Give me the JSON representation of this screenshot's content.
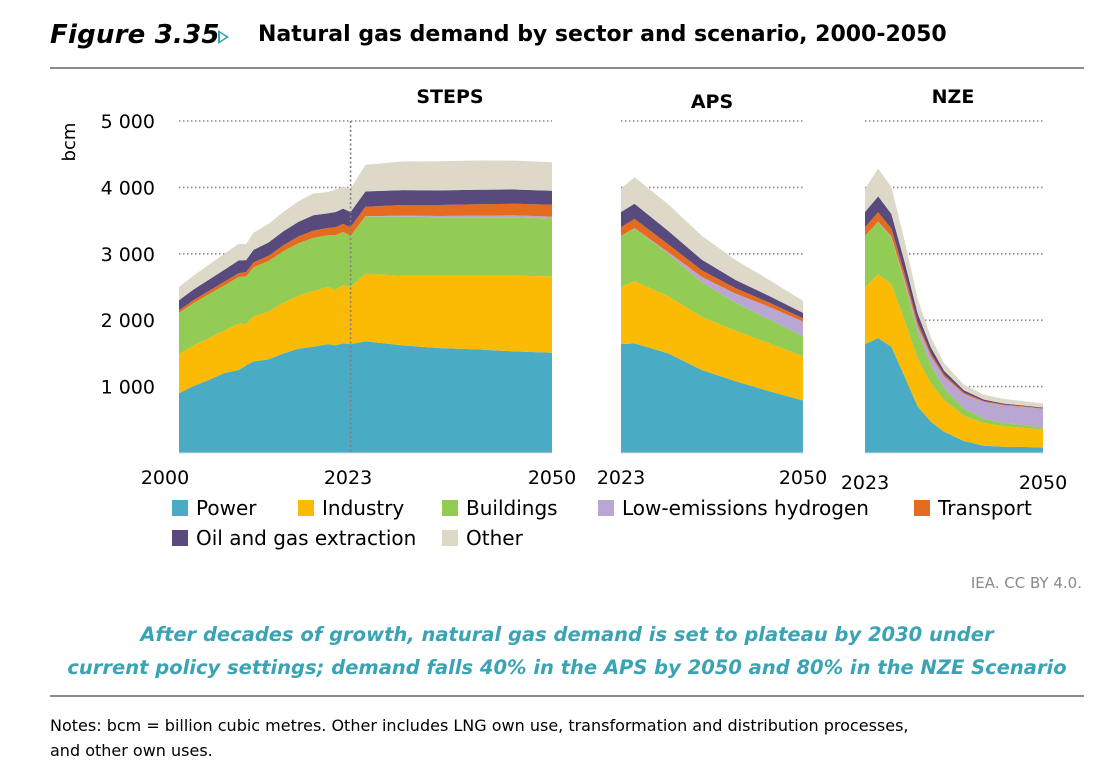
{
  "header": {
    "figure_number": "Figure 3.35",
    "title": "Natural gas demand by sector and scenario, 2000-2050"
  },
  "chart_data": {
    "type": "area",
    "ylabel": "bcm",
    "ylim": [
      0,
      5000
    ],
    "yticks": [
      1000,
      2000,
      3000,
      4000,
      5000
    ],
    "ytick_labels": [
      "1 000",
      "2 000",
      "3 000",
      "4 000",
      "5 000"
    ],
    "grid": "dotted horizontal",
    "colors": {
      "Power": "#4aabc4",
      "Industry": "#fbbb05",
      "Buildings": "#92cc55",
      "Low-emissions hydrogen": "#b9a6d3",
      "Transport": "#e56b1f",
      "Oil and gas extraction": "#594a7d",
      "Other": "#ddd8c8"
    },
    "series_order": [
      "Power",
      "Industry",
      "Buildings",
      "Low-emissions hydrogen",
      "Transport",
      "Oil and gas extraction",
      "Other"
    ],
    "panels": [
      {
        "title": "STEPS",
        "x": [
          2000,
          2002,
          2004,
          2006,
          2008,
          2009,
          2010,
          2012,
          2014,
          2016,
          2018,
          2020,
          2021,
          2022,
          2023,
          2025,
          2030,
          2035,
          2040,
          2045,
          2050
        ],
        "x_tick_labels": [
          "2000",
          "2023",
          "2050"
        ],
        "highlight_year": 2023,
        "series": [
          {
            "name": "Power",
            "values": [
              900,
              1010,
              1100,
              1200,
              1250,
              1320,
              1380,
              1410,
              1500,
              1570,
              1600,
              1640,
              1620,
              1650,
              1640,
              1680,
              1620,
              1580,
              1560,
              1530,
              1510
            ]
          },
          {
            "name": "Industry",
            "values": [
              590,
              610,
              630,
              640,
              700,
              620,
              680,
              720,
              760,
              800,
              840,
              860,
              840,
              880,
              860,
              1020,
              1050,
              1090,
              1110,
              1140,
              1150
            ]
          },
          {
            "name": "Buildings",
            "values": [
              620,
              640,
              660,
              680,
              700,
              720,
              740,
              760,
              780,
              790,
              800,
              780,
              820,
              800,
              770,
              860,
              890,
              880,
              880,
              880,
              870
            ]
          },
          {
            "name": "Low-emissions hydrogen",
            "values": [
              0,
              0,
              0,
              0,
              0,
              0,
              0,
              0,
              0,
              0,
              0,
              0,
              0,
              0,
              0,
              5,
              15,
              20,
              25,
              28,
              30
            ]
          },
          {
            "name": "Transport",
            "values": [
              40,
              45,
              50,
              55,
              60,
              65,
              70,
              80,
              90,
              100,
              110,
              110,
              120,
              120,
              130,
              145,
              160,
              165,
              170,
              175,
              180
            ]
          },
          {
            "name": "Oil and gas extraction",
            "values": [
              150,
              160,
              170,
              180,
              190,
              180,
              190,
              200,
              210,
              220,
              230,
              220,
              230,
              230,
              230,
              230,
              225,
              220,
              220,
              215,
              210
            ]
          },
          {
            "name": "Other",
            "values": [
              200,
              210,
              225,
              240,
              250,
              240,
              260,
              280,
              290,
              310,
              330,
              320,
              340,
              330,
              350,
              400,
              430,
              440,
              440,
              435,
              430
            ]
          }
        ]
      },
      {
        "title": "APS",
        "x": [
          2023,
          2025,
          2030,
          2035,
          2040,
          2045,
          2050
        ],
        "x_tick_labels": [
          "2023",
          "2050"
        ],
        "series": [
          {
            "name": "Power",
            "values": [
              1640,
              1650,
              1500,
              1250,
              1080,
              930,
              790
            ]
          },
          {
            "name": "Industry",
            "values": [
              860,
              940,
              860,
              800,
              760,
              720,
              670
            ]
          },
          {
            "name": "Buildings",
            "values": [
              770,
              790,
              640,
              520,
              420,
              360,
              300
            ]
          },
          {
            "name": "Low-emissions hydrogen",
            "values": [
              0,
              5,
              25,
              80,
              140,
              190,
              220
            ]
          },
          {
            "name": "Transport",
            "values": [
              130,
              140,
              120,
              100,
              80,
              65,
              50
            ]
          },
          {
            "name": "Oil and gas extraction",
            "values": [
              230,
              230,
              200,
              160,
              125,
              100,
              80
            ]
          },
          {
            "name": "Other",
            "values": [
              350,
              400,
              400,
              360,
              300,
              240,
              180
            ]
          }
        ]
      },
      {
        "title": "NZE",
        "x": [
          2023,
          2025,
          2027,
          2029,
          2031,
          2033,
          2035,
          2038,
          2041,
          2044,
          2047,
          2050
        ],
        "x_tick_labels": [
          "2023",
          "2050"
        ],
        "series": [
          {
            "name": "Power",
            "values": [
              1640,
              1730,
              1600,
              1150,
              700,
              470,
              320,
              180,
              110,
              95,
              90,
              85
            ]
          },
          {
            "name": "Industry",
            "values": [
              860,
              960,
              940,
              850,
              720,
              580,
              480,
              380,
              340,
              310,
              290,
              270
            ]
          },
          {
            "name": "Buildings",
            "values": [
              770,
              790,
              700,
              560,
              400,
              280,
              180,
              110,
              70,
              50,
              40,
              30
            ]
          },
          {
            "name": "Low-emissions hydrogen",
            "values": [
              0,
              5,
              20,
              50,
              90,
              130,
              170,
              220,
              250,
              265,
              275,
              280
            ]
          },
          {
            "name": "Transport",
            "values": [
              130,
              140,
              120,
              90,
              60,
              40,
              30,
              20,
              15,
              10,
              10,
              10
            ]
          },
          {
            "name": "Oil and gas extraction",
            "values": [
              230,
              240,
              220,
              180,
              130,
              90,
              60,
              35,
              20,
              15,
              10,
              10
            ]
          },
          {
            "name": "Other",
            "values": [
              350,
              420,
              400,
              320,
              220,
              150,
              110,
              85,
              75,
              70,
              65,
              60
            ]
          }
        ]
      }
    ]
  },
  "legend": [
    {
      "label": "Power",
      "color": "#4aabc4"
    },
    {
      "label": "Industry",
      "color": "#fbbb05"
    },
    {
      "label": "Buildings",
      "color": "#92cc55"
    },
    {
      "label": "Low-emissions hydrogen",
      "color": "#b9a6d3"
    },
    {
      "label": "Transport",
      "color": "#e56b1f"
    },
    {
      "label": "Oil and gas extraction",
      "color": "#594a7d"
    },
    {
      "label": "Other",
      "color": "#ddd8c8"
    }
  ],
  "credit": "IEA. CC BY 4.0.",
  "caption": {
    "line1": "After decades of growth, natural gas demand is set to plateau by 2030 under",
    "line2": "current policy settings; demand falls 40% in the APS by 2050 and 80% in the NZE Scenario"
  },
  "notes": {
    "line1": "Notes: bcm = billion cubic metres. Other includes LNG own use, transformation and distribution processes,",
    "line2": "and other own uses."
  }
}
